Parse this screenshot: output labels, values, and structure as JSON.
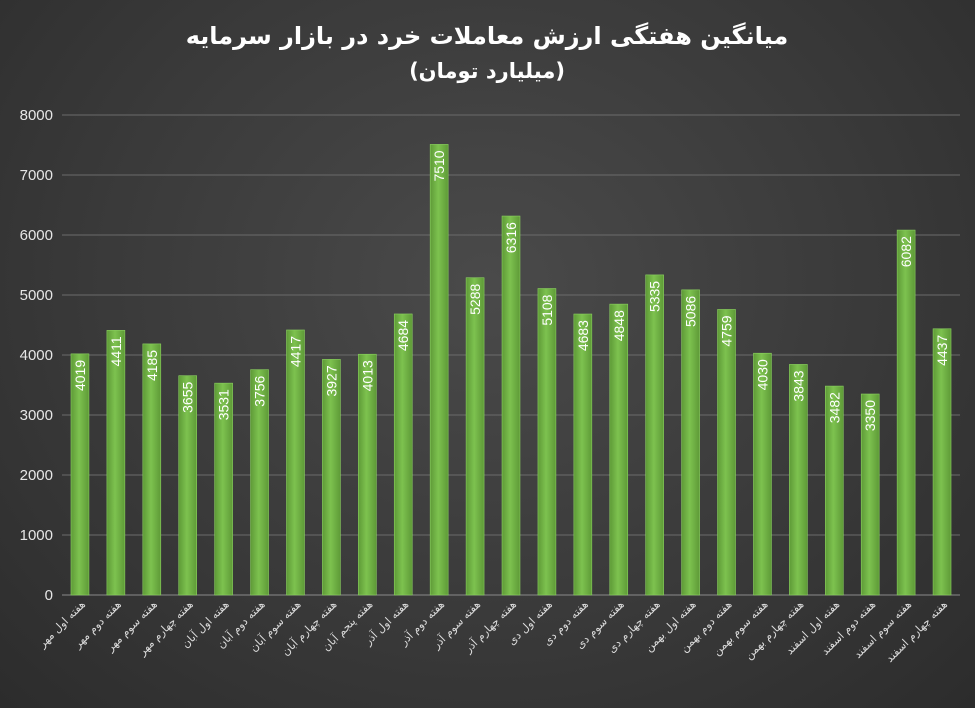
{
  "chart_data": {
    "type": "bar",
    "title": "میانگین هفتگی ارزش معاملات خرد در بازار سرمایه",
    "subtitle": "(میلیارد تومان)",
    "xlabel": "",
    "ylabel": "",
    "ylim": [
      0,
      8000
    ],
    "yticks": [
      0,
      1000,
      2000,
      3000,
      4000,
      5000,
      6000,
      7000,
      8000
    ],
    "grid": true,
    "legend": "none",
    "bar_color": "#70ad47",
    "categories": [
      "هفته اول مهر",
      "هفته دوم مهر",
      "هفته سوم مهر",
      "هفته چهارم مهر",
      "هفته اول آبان",
      "هفته دوم آبان",
      "هفته سوم آبان",
      "هفته چهارم آبان",
      "هفته پنجم آبان",
      "هفته اول آذر",
      "هفته دوم آذر",
      "هفته سوم آذر",
      "هفته چهارم آذر",
      "هفته اول دی",
      "هفته دوم دی",
      "هفته سوم دی",
      "هفته چهارم دی",
      "هفته اول بهمن",
      "هفته دوم بهمن",
      "هفته سوم بهمن",
      "هفته چهارم بهمن",
      "هفته اول اسفند",
      "هفته دوم اسفند",
      "هفته سوم اسفند",
      "هفته چهارم اسفند"
    ],
    "values": [
      4019,
      4411,
      4185,
      3655,
      3531,
      3756,
      4417,
      3927,
      4013,
      4684,
      7510,
      5288,
      6316,
      5108,
      4683,
      4848,
      5335,
      5086,
      4759,
      4030,
      3843,
      3482,
      3350,
      6082,
      4437
    ]
  }
}
